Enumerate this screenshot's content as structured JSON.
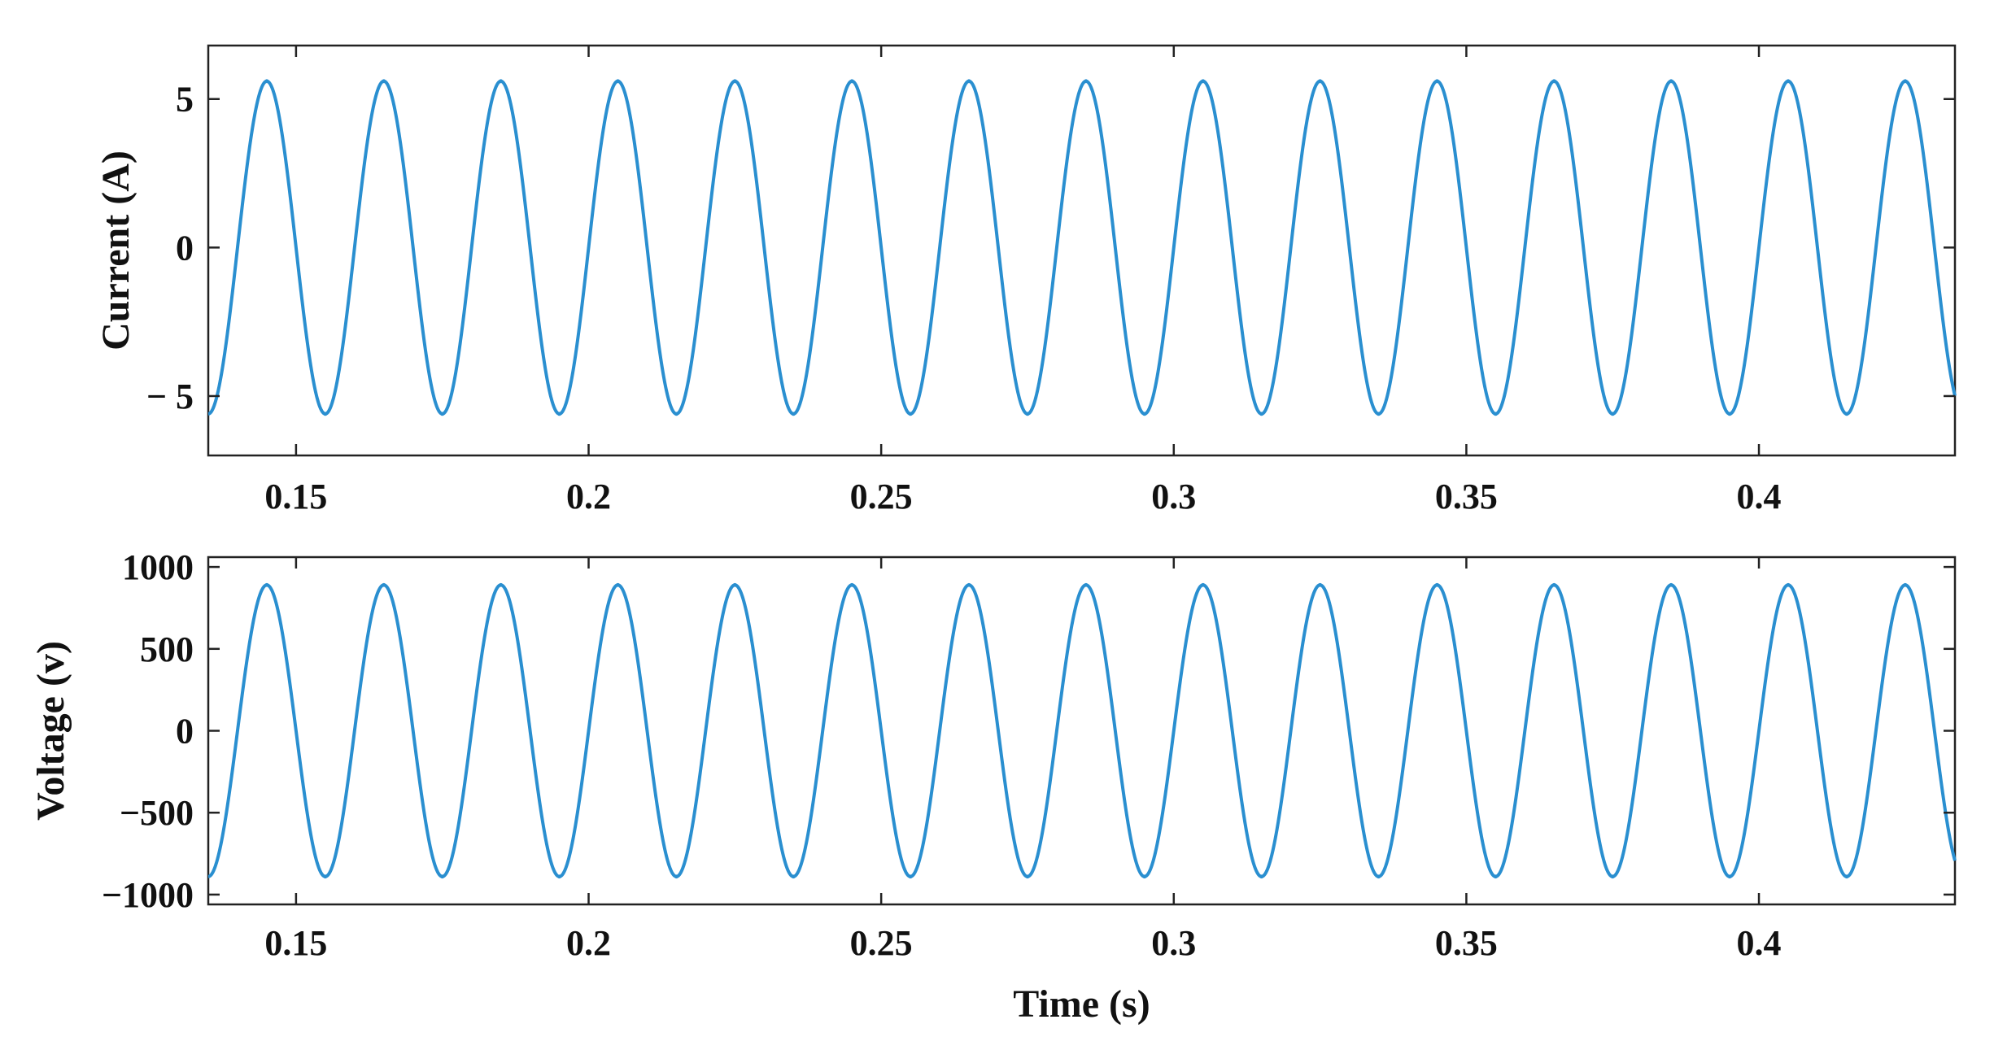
{
  "colors": {
    "line": "#2a8fd0",
    "axes": "#222222",
    "background": "#ffffff"
  },
  "chart_data": [
    {
      "type": "line",
      "ylabel": "Current (A)",
      "xlabel": "",
      "xlim": [
        0.135,
        0.4335
      ],
      "ylim": [
        -7,
        6.8
      ],
      "xticks": [
        0.15,
        0.2,
        0.25,
        0.3,
        0.35,
        0.4
      ],
      "xtick_labels": [
        "0.15",
        "0.2",
        "0.25",
        "0.3",
        "0.35",
        "0.4"
      ],
      "yticks": [
        5,
        0,
        -5
      ],
      "ytick_labels": [
        "5",
        "0",
        "− 5"
      ],
      "grid": false,
      "series": [
        {
          "waveform": "sine",
          "amplitude": 5.6,
          "frequency_hz": 50,
          "first_peak_time_s": 0.145,
          "x_range": [
            0.135,
            0.4335
          ],
          "peaks_t": [
            0.145,
            0.165,
            0.185,
            0.205,
            0.225,
            0.245,
            0.265,
            0.285,
            0.305,
            0.325,
            0.345,
            0.365,
            0.385,
            0.405,
            0.425
          ],
          "troughs_t": [
            0.155,
            0.175,
            0.195,
            0.215,
            0.235,
            0.255,
            0.275,
            0.295,
            0.315,
            0.335,
            0.355,
            0.375,
            0.395,
            0.415
          ]
        }
      ]
    },
    {
      "type": "line",
      "ylabel": "Voltage (v)",
      "xlabel": "Time (s)",
      "xlim": [
        0.135,
        0.4335
      ],
      "ylim": [
        -1060,
        1060
      ],
      "xticks": [
        0.15,
        0.2,
        0.25,
        0.3,
        0.35,
        0.4
      ],
      "xtick_labels": [
        "0.15",
        "0.2",
        "0.25",
        "0.3",
        "0.35",
        "0.4"
      ],
      "yticks": [
        1000,
        500,
        0,
        -500,
        -1000
      ],
      "ytick_labels": [
        "1000",
        "500",
        "0",
        "−500",
        "−1000"
      ],
      "grid": false,
      "series": [
        {
          "waveform": "sine",
          "amplitude": 890,
          "frequency_hz": 50,
          "first_peak_time_s": 0.145,
          "x_range": [
            0.135,
            0.4335
          ],
          "peaks_t": [
            0.145,
            0.165,
            0.185,
            0.205,
            0.225,
            0.245,
            0.265,
            0.285,
            0.305,
            0.325,
            0.345,
            0.365,
            0.385,
            0.405,
            0.425
          ],
          "troughs_t": [
            0.155,
            0.175,
            0.195,
            0.215,
            0.235,
            0.255,
            0.275,
            0.295,
            0.315,
            0.335,
            0.355,
            0.375,
            0.395,
            0.415
          ]
        }
      ]
    }
  ]
}
